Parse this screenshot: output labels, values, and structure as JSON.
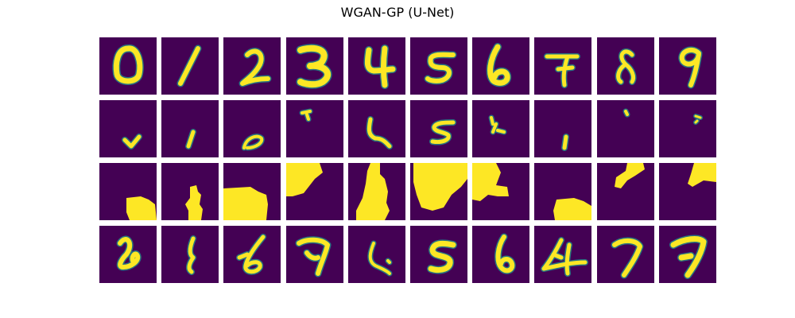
{
  "figure": {
    "title": "WGAN-GP (U-Net)"
  },
  "colors": {
    "background": "#440154",
    "stroke": "#fde725",
    "stroke_edge": "#21918c",
    "stroke_mid": "#5ec962"
  },
  "grid": {
    "rows": 4,
    "cols": 10,
    "row_contents": [
      "real-digit",
      "masked-partial-digit",
      "binary-mask",
      "generated-digit"
    ]
  },
  "tiles": [
    [
      "digit-0",
      "digit-1",
      "digit-2",
      "digit-3",
      "digit-4",
      "digit-5",
      "digit-6",
      "digit-7",
      "digit-8",
      "digit-9"
    ],
    [
      "partial-check",
      "partial-slash",
      "partial-loop",
      "partial-dash",
      "partial-hook",
      "partial-five",
      "partial-tick",
      "partial-bar",
      "partial-dot",
      "partial-speck"
    ],
    [
      "mask-blob-bottom-right",
      "mask-column-bottom",
      "mask-blob-bottom-left",
      "mask-blob-top-left",
      "mask-tower",
      "mask-cloud-top",
      "mask-blob-top-left-b",
      "mask-blob-bottom-right-b",
      "mask-blob-top",
      "mask-blob-top-right"
    ],
    [
      "gen-two-like",
      "gen-one-like",
      "gen-six-like",
      "gen-seven-like",
      "gen-hook",
      "gen-five",
      "gen-six",
      "gen-four-like",
      "gen-seven",
      "gen-seven-b"
    ]
  ]
}
